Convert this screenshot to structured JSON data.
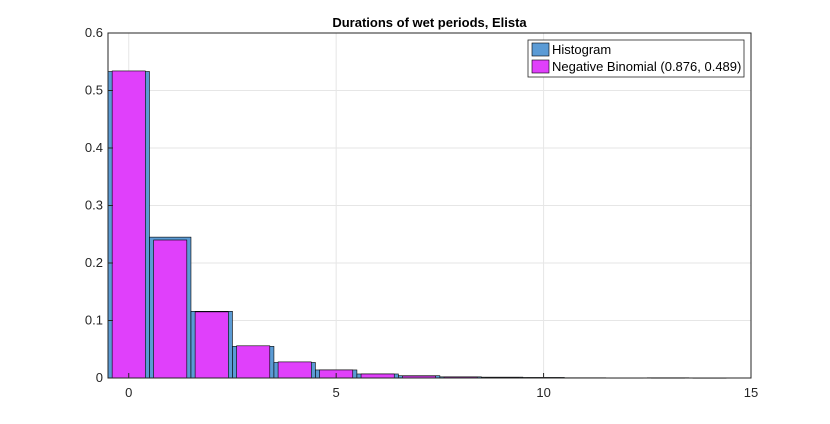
{
  "chart_data": {
    "type": "bar",
    "title": "Durations of wet periods, Elista",
    "xlabel": "",
    "ylabel": "",
    "xlim": [
      -0.5,
      15
    ],
    "ylim": [
      0,
      0.6
    ],
    "x_ticks": [
      0,
      5,
      10,
      15
    ],
    "y_ticks": [
      0,
      0.1,
      0.2,
      0.3,
      0.4,
      0.5,
      0.6
    ],
    "x_tick_labels": [
      "0",
      "5",
      "10",
      "15"
    ],
    "y_tick_labels": [
      "0",
      "0.1",
      "0.2",
      "0.3",
      "0.4",
      "0.5",
      "0.6"
    ],
    "grid": true,
    "legend_position": "top-right",
    "series": [
      {
        "name": "Histogram",
        "color": "#5b9bd5",
        "x": [
          0,
          1,
          2,
          3,
          4,
          5,
          6,
          7,
          8,
          9,
          10,
          11,
          12,
          13,
          14
        ],
        "values": [
          0.533,
          0.245,
          0.116,
          0.055,
          0.027,
          0.014,
          0.007,
          0.004,
          0.002,
          0.0015,
          0.001,
          0.0005,
          0.0003,
          0.0005,
          0.0002
        ]
      },
      {
        "name": "Negative Binomial (0.876, 0.489)",
        "color": "#e040fb",
        "x": [
          0,
          1,
          2,
          3,
          4,
          5,
          6,
          7,
          8,
          9,
          10,
          11,
          12,
          13,
          14
        ],
        "values": [
          0.534,
          0.24,
          0.115,
          0.056,
          0.028,
          0.014,
          0.007,
          0.0035,
          0.0018,
          0.0009,
          0.0005,
          0.00025,
          0.00013,
          7e-05,
          3e-05
        ]
      }
    ]
  }
}
